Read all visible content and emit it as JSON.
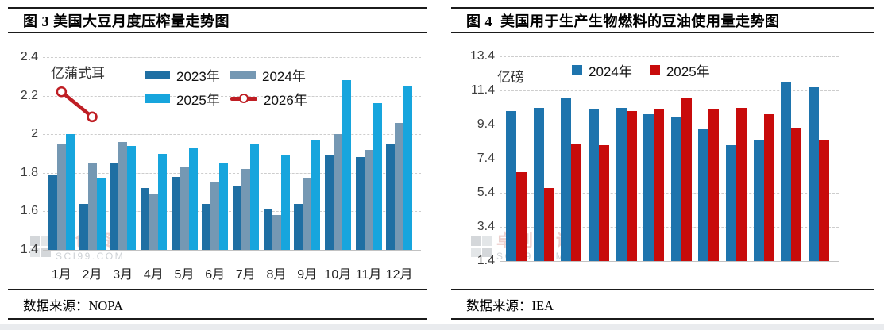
{
  "left_panel": {
    "title": "图 3 美国大豆月度压榨量走势图",
    "unit_label": "亿蒲式耳",
    "source": "数据来源：NOPA",
    "watermark": {
      "cn": "卓创资讯",
      "en": "SCI99.COM"
    },
    "chart_data": {
      "type": "bar",
      "x_labels": [
        "1月",
        "2月",
        "3月",
        "4月",
        "5月",
        "6月",
        "7月",
        "8月",
        "9月",
        "10月",
        "11月",
        "12月"
      ],
      "ylim": [
        1.4,
        2.4
      ],
      "yticks": [
        "2.4",
        "2.2",
        "2",
        "1.8",
        "1.6",
        "1.4"
      ],
      "grid": "dashed-horizontal",
      "legend_position": "top-left, two rows",
      "series": [
        {
          "name": "2023年",
          "type": "bar",
          "color": "#1f6fa3",
          "values": [
            1.79,
            1.64,
            1.85,
            1.72,
            1.78,
            1.64,
            1.73,
            1.61,
            1.64,
            1.89,
            1.88,
            1.95
          ]
        },
        {
          "name": "2024年",
          "type": "bar",
          "color": "#7598b3",
          "values": [
            1.95,
            1.85,
            1.96,
            1.69,
            1.83,
            1.75,
            1.82,
            1.58,
            1.77,
            2.0,
            1.92,
            2.06
          ]
        },
        {
          "name": "2025年",
          "type": "bar",
          "color": "#17a5dd",
          "values": [
            2.0,
            1.77,
            1.94,
            1.9,
            1.93,
            1.85,
            1.95,
            1.89,
            1.97,
            2.28,
            2.16,
            2.25
          ]
        },
        {
          "name": "2026年",
          "type": "line",
          "color": "#bf1e24",
          "values": [
            2.22,
            2.09,
            null,
            null,
            null,
            null,
            null,
            null,
            null,
            null,
            null,
            null
          ]
        }
      ]
    }
  },
  "right_panel": {
    "title": "图 4  美国用于生产生物燃料的豆油使用量走势图",
    "unit_label": "亿磅",
    "source": "数据来源：IEA",
    "watermark": {
      "cn": "卓创资讯",
      "en": "SCI99.COM"
    },
    "chart_data": {
      "type": "bar",
      "x_labels": [],
      "x_axis_labels_visible": false,
      "ylim": [
        1.4,
        13.4
      ],
      "yticks": [
        "13.4",
        "11.4",
        "9.4",
        "7.4",
        "5.4",
        "3.4",
        "1.4"
      ],
      "grid": "dashed-horizontal",
      "legend_position": "top-center, one row",
      "series": [
        {
          "name": "2024年",
          "type": "bar",
          "color": "#1e74ad",
          "values": [
            10.2,
            10.4,
            11.0,
            10.3,
            10.4,
            10.0,
            9.8,
            9.1,
            8.2,
            8.5,
            11.9,
            11.6
          ]
        },
        {
          "name": "2025年",
          "type": "bar",
          "color": "#c80b0b",
          "values": [
            6.6,
            5.7,
            8.3,
            8.2,
            10.2,
            10.3,
            11.0,
            10.3,
            10.4,
            10.0,
            9.2,
            8.5
          ]
        }
      ]
    }
  }
}
